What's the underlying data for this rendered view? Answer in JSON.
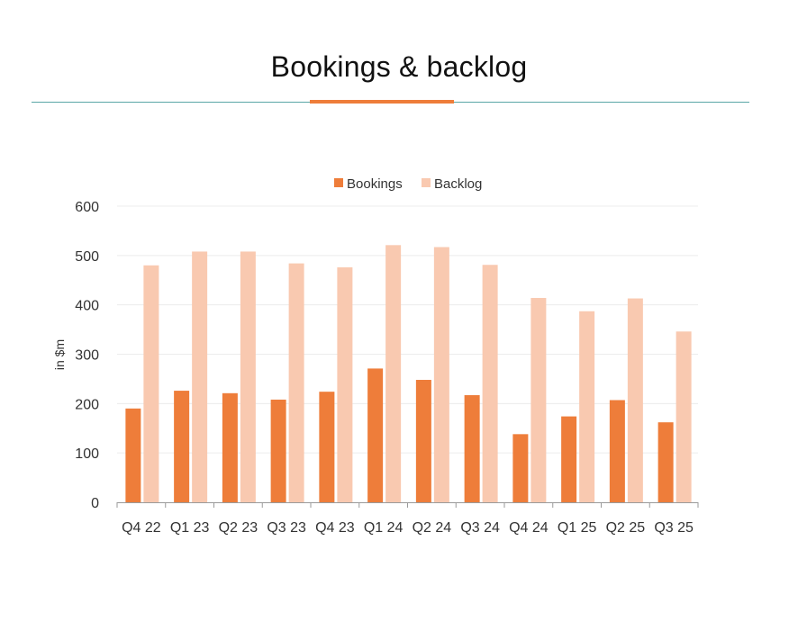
{
  "page": {
    "title": "Bookings & backlog"
  },
  "colors": {
    "accent": "#ee7d3a",
    "rule": "#5aa6a6",
    "bookings": "#ee7d3a",
    "backlog": "#f9c9b0"
  },
  "chart_data": {
    "type": "bar",
    "title": "",
    "xlabel": "",
    "ylabel": "in $m",
    "ylim": [
      0,
      600
    ],
    "yticks": [
      0,
      100,
      200,
      300,
      400,
      500,
      600
    ],
    "grid": true,
    "legend_position": "top-center",
    "categories": [
      "Q4 22",
      "Q1 23",
      "Q2 23",
      "Q3 23",
      "Q4 23",
      "Q1 24",
      "Q2 24",
      "Q3 24",
      "Q4 24",
      "Q1 25",
      "Q2 25",
      "Q3 25"
    ],
    "series": [
      {
        "name": "Bookings",
        "color": "#ee7d3a",
        "values": [
          190,
          226,
          221,
          208,
          224,
          271,
          248,
          217,
          138,
          174,
          207,
          162
        ]
      },
      {
        "name": "Backlog",
        "color": "#f9c9b0",
        "values": [
          480,
          508,
          508,
          484,
          476,
          521,
          517,
          481,
          414,
          387,
          413,
          346
        ]
      }
    ]
  }
}
